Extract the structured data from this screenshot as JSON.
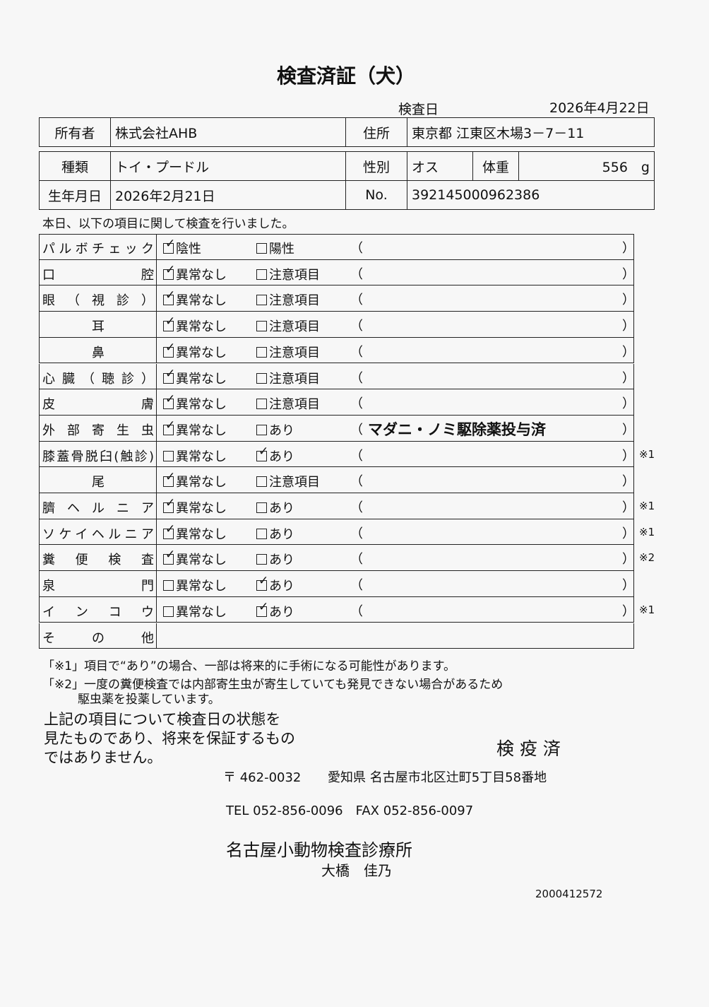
{
  "title": "検査済証（犬）",
  "inspection_date_label": "検査日",
  "inspection_date": "2026年4月22日",
  "owner_label": "所有者",
  "owner": "株式会社AHB",
  "address_label": "住所",
  "address": "東京都 江東区木場3－7－11",
  "breed_label": "種類",
  "breed": "トイ・プードル",
  "sex_label": "性別",
  "sex": "オス",
  "weight_label": "体重",
  "weight": "556　g",
  "birth_label": "生年月日",
  "birth": "2026年2月21日",
  "no_label": "No.",
  "no": "392145000962386",
  "intro": "本日、以下の項目に関して検査を行いました。",
  "paren_open": "（",
  "paren_close": "）",
  "rows": [
    {
      "label": "パルボチェック",
      "o1": "陰性",
      "c1": true,
      "o2": "陽性",
      "c2": false,
      "note": "",
      "mark": ""
    },
    {
      "label": "口腔",
      "o1": "異常なし",
      "c1": true,
      "o2": "注意項目",
      "c2": false,
      "note": "",
      "mark": ""
    },
    {
      "label": "眼（視診）",
      "o1": "異常なし",
      "c1": true,
      "o2": "注意項目",
      "c2": false,
      "note": "",
      "mark": ""
    },
    {
      "label": "耳",
      "o1": "異常なし",
      "c1": true,
      "o2": "注意項目",
      "c2": false,
      "note": "",
      "mark": "",
      "center": true
    },
    {
      "label": "鼻",
      "o1": "異常なし",
      "c1": true,
      "o2": "注意項目",
      "c2": false,
      "note": "",
      "mark": "",
      "center": true
    },
    {
      "label": "心臓（聴診）",
      "o1": "異常なし",
      "c1": true,
      "o2": "注意項目",
      "c2": false,
      "note": "",
      "mark": ""
    },
    {
      "label": "皮膚",
      "o1": "異常なし",
      "c1": true,
      "o2": "注意項目",
      "c2": false,
      "note": "",
      "mark": ""
    },
    {
      "label": "外部寄生虫",
      "o1": "異常なし",
      "c1": true,
      "o2": "あり",
      "c2": false,
      "note": "マダニ・ノミ駆除薬投与済",
      "mark": ""
    },
    {
      "label": "膝蓋骨脱臼(触診)",
      "o1": "異常なし",
      "c1": false,
      "o2": "あり",
      "c2": true,
      "note": "",
      "mark": "※1"
    },
    {
      "label": "尾",
      "o1": "異常なし",
      "c1": true,
      "o2": "注意項目",
      "c2": false,
      "note": "",
      "mark": "",
      "center": true
    },
    {
      "label": "臍ヘルニア",
      "o1": "異常なし",
      "c1": true,
      "o2": "あり",
      "c2": false,
      "note": "",
      "mark": "※1"
    },
    {
      "label": "ソケイヘルニア",
      "o1": "異常なし",
      "c1": true,
      "o2": "あり",
      "c2": false,
      "note": "",
      "mark": "※1"
    },
    {
      "label": "糞便検査",
      "o1": "異常なし",
      "c1": true,
      "o2": "あり",
      "c2": false,
      "note": "",
      "mark": "※2"
    },
    {
      "label": "泉門",
      "o1": "異常なし",
      "c1": false,
      "o2": "あり",
      "c2": true,
      "note": "",
      "mark": ""
    },
    {
      "label": "インコウ",
      "o1": "異常なし",
      "c1": false,
      "o2": "あり",
      "c2": true,
      "note": "",
      "mark": "※1"
    }
  ],
  "other_label": "その他",
  "foot1": "「※1」項目で“あり”の場合、一部は将来的に手術になる可能性があります。",
  "foot2a": "「※2」一度の糞便検査では内部寄生虫が寄生していても発見できない場合があるため",
  "foot2b": "駆虫薬を投薬しています。",
  "disclaimer": [
    "上記の項目について検査日の状態を",
    "見たものであり、将来を保証するもの",
    "ではありません。"
  ],
  "stamp": "検 疫 済",
  "postal": "〒 462-0032",
  "clinic_address": "愛知県 名古屋市北区辻町5丁目58番地",
  "tel": "TEL 052-856-0096　FAX 052-856-0097",
  "clinic": "名古屋小動物検査診療所",
  "person": "大橋　佳乃",
  "code": "2000412572"
}
